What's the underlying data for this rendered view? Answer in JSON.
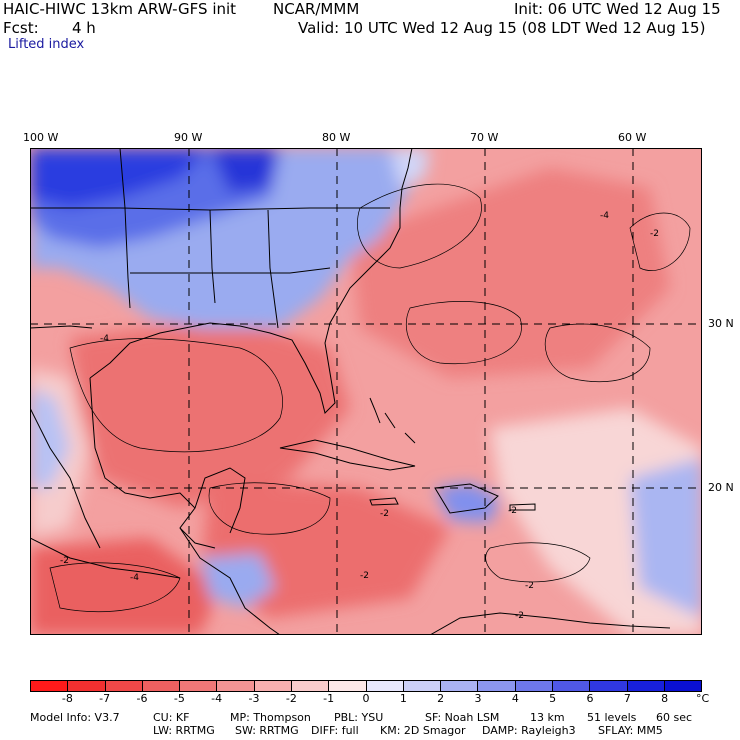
{
  "header": {
    "model_line": "HAIC-HIWC 13km ARW-GFS init",
    "org": "NCAR/MMM",
    "init": "Init: 06 UTC Wed 12 Aug 15",
    "fcst_label": "Fcst:",
    "fcst_value": "4 h",
    "valid": "Valid: 10 UTC Wed 12 Aug 15 (08 LDT Wed 12 Aug 15)",
    "field": "Lifted index"
  },
  "map": {
    "lon_labels": [
      "100 W",
      "90 W",
      "80 W",
      "70 W",
      "60 W"
    ],
    "lat_labels": [
      "30 N",
      "20 N"
    ],
    "contour_labels": [
      "-4",
      "-4",
      "-2",
      "-2",
      "-2",
      "-2",
      "-2",
      "-4",
      "-2",
      "-2"
    ],
    "colors": {
      "cold_strong": "#1a1ae6",
      "cold": "#8fa3ef",
      "neutral": "#f9dcdc",
      "warm": "#f08c8c",
      "warm_strong": "#e85050"
    }
  },
  "colorbar": {
    "colors": [
      "#ff1a1a",
      "#f33030",
      "#f04848",
      "#ee6060",
      "#f07878",
      "#f39494",
      "#f7b0b0",
      "#facccc",
      "#fde8e8",
      "#e8e8fd",
      "#ccd0f7",
      "#aab2f3",
      "#8c96ef",
      "#6e78ea",
      "#5058e6",
      "#3038e2",
      "#1820dc",
      "#0a10d2"
    ],
    "ticks": [
      "-8",
      "-7",
      "-6",
      "-5",
      "-4",
      "-3",
      "-2",
      "-1",
      "0",
      "1",
      "2",
      "3",
      "4",
      "5",
      "6",
      "7",
      "8"
    ],
    "unit": "°C"
  },
  "footer": {
    "model_info": "Model Info: V3.7",
    "cu": "CU: KF",
    "mp": "MP: Thompson",
    "pbl": "PBL: YSU",
    "sf": "SF: Noah LSM",
    "res": "13 km",
    "levels": "51 levels",
    "dt": "60 sec",
    "lw": "LW: RRTMG",
    "sw": "SW: RRTMG",
    "diff": "DIFF: full",
    "km": "KM: 2D Smagor",
    "damp": "DAMP: Rayleigh3",
    "sflay": "SFLAY: MM5"
  }
}
